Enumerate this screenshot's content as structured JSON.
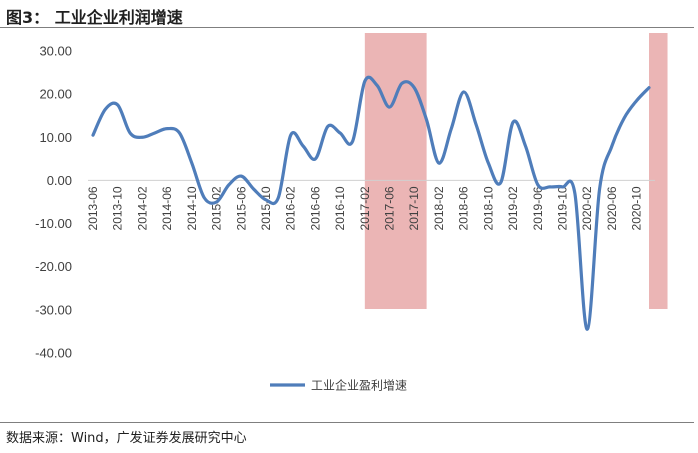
{
  "header": {
    "title": "图3：  工业企业利润增速"
  },
  "footer": {
    "source": "数据来源：Wind，广发证券发展研究中心"
  },
  "colors": {
    "series": "#4f7dba",
    "highlight": "#ebb5b5",
    "rule": "#7f7f7f"
  },
  "chart_data": {
    "type": "line",
    "title": "",
    "xlabel": "",
    "ylabel": "",
    "ylim": [
      -40,
      30
    ],
    "yticks": [
      30,
      20,
      10,
      0,
      -10,
      -20,
      -30,
      -40
    ],
    "ytick_labels": [
      "30.00",
      "20.00",
      "10.00",
      "0.00",
      "-10.00",
      "-20.00",
      "-30.00",
      "-40.00"
    ],
    "x_tick_labels": [
      "2013-06",
      "2013-10",
      "2014-02",
      "2014-06",
      "2014-10",
      "2015-02",
      "2015-06",
      "2015-10",
      "2016-02",
      "2016-06",
      "2016-10",
      "2017-02",
      "2017-06",
      "2017-10",
      "2018-02",
      "2018-06",
      "2018-10",
      "2019-02",
      "2019-06",
      "2019-10",
      "2020-02",
      "2020-06",
      "2020-10"
    ],
    "grid": false,
    "legend_position": "bottom",
    "highlight_bands": [
      {
        "from": "2017-02",
        "to": "2017-12"
      },
      {
        "from": "2020-12",
        "to": "2021-03"
      }
    ],
    "series": [
      {
        "name": "工业企业盈利增速",
        "x": [
          "2013-06",
          "2013-08",
          "2013-10",
          "2013-12",
          "2014-02",
          "2014-04",
          "2014-06",
          "2014-08",
          "2014-10",
          "2014-12",
          "2015-02",
          "2015-04",
          "2015-06",
          "2015-08",
          "2015-10",
          "2015-12",
          "2016-02",
          "2016-04",
          "2016-06",
          "2016-08",
          "2016-10",
          "2016-12",
          "2017-02",
          "2017-04",
          "2017-06",
          "2017-08",
          "2017-10",
          "2017-12",
          "2018-02",
          "2018-04",
          "2018-06",
          "2018-08",
          "2018-10",
          "2018-12",
          "2019-02",
          "2019-04",
          "2019-06",
          "2019-08",
          "2019-10",
          "2019-12",
          "2020-02",
          "2020-04",
          "2020-06",
          "2020-08",
          "2020-10",
          "2020-12"
        ],
        "values": [
          10.5,
          16.5,
          17.5,
          11.0,
          10.0,
          11.0,
          12.0,
          11.0,
          4.0,
          -4.0,
          -5.0,
          -1.0,
          1.0,
          -2.0,
          -4.5,
          -4.0,
          10.5,
          8.0,
          5.0,
          12.5,
          11.0,
          9.0,
          23.0,
          22.0,
          17.0,
          22.5,
          21.5,
          14.0,
          4.0,
          12.0,
          20.5,
          13.0,
          4.0,
          -0.5,
          13.5,
          8.0,
          -1.0,
          -1.5,
          -1.5,
          -3.0,
          -34.5,
          -2.0,
          8.0,
          14.5,
          18.5,
          21.5
        ]
      }
    ]
  }
}
